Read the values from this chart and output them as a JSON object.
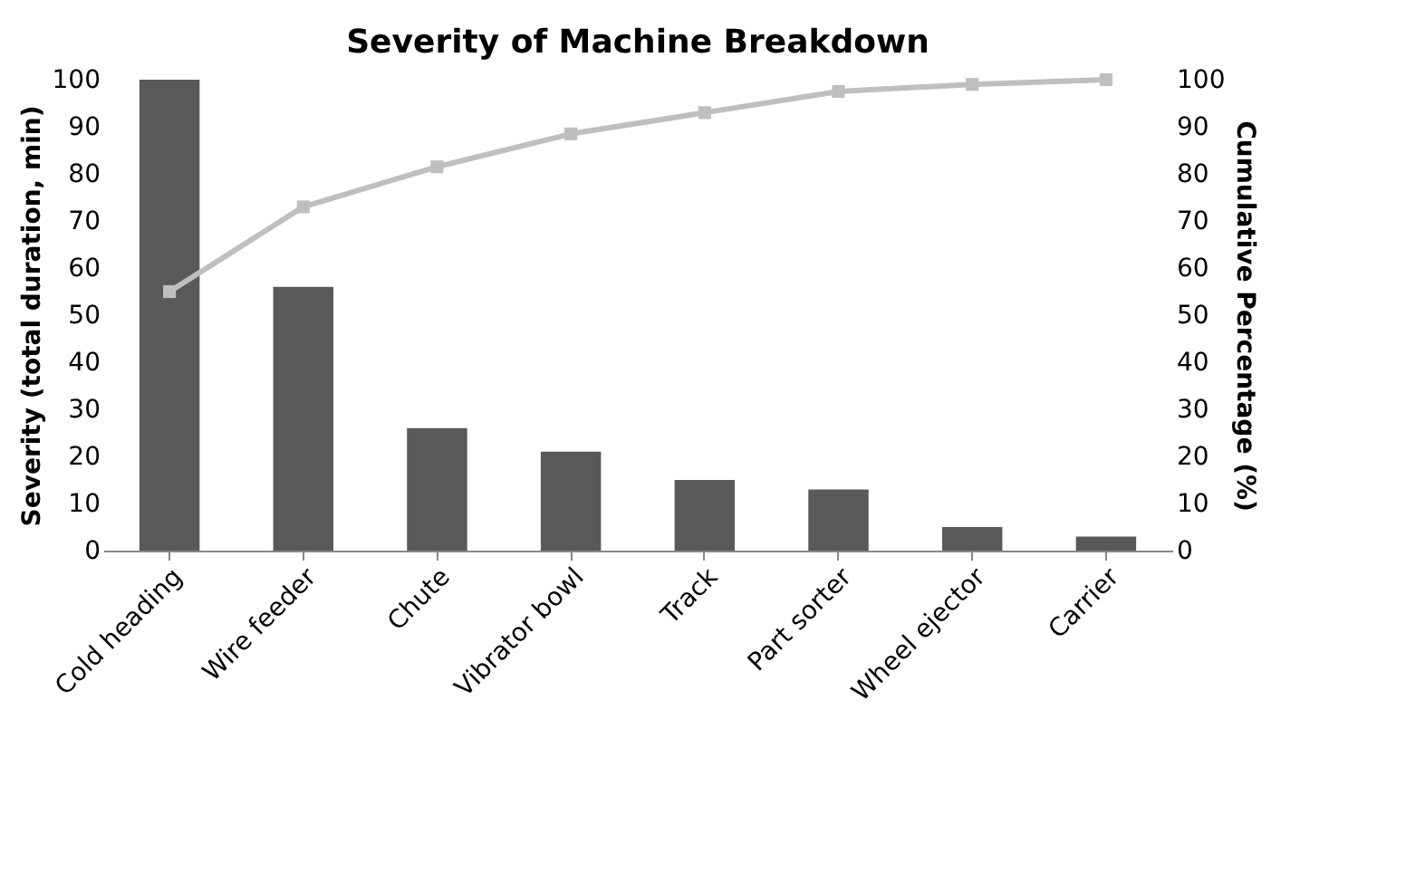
{
  "chart_data": {
    "type": "bar",
    "title": "Severity of Machine Breakdown",
    "ylabel": "Severity (total duration, min)",
    "y2label": "Cumulative Percentage (%)",
    "categories": [
      "Cold heading",
      "Wire feeder",
      "Chute",
      "Vibrator bowl",
      "Track",
      "Part sorter",
      "Wheel ejector",
      "Carrier"
    ],
    "series": [
      {
        "color": "#595959",
        "values": [
          100,
          56,
          26,
          21,
          15,
          13,
          5,
          3
        ]
      },
      {
        "type": "line",
        "axis": "y2",
        "color": "#bfbfbf",
        "marker": "square",
        "values": [
          55,
          73,
          81.5,
          88.5,
          93,
          97.5,
          99,
          100
        ]
      }
    ],
    "ylim": [
      0,
      100
    ],
    "yticks": [
      0,
      10,
      20,
      30,
      40,
      50,
      60,
      70,
      80,
      90,
      100
    ],
    "y2lim": [
      0,
      100
    ],
    "y2ticks": [
      0,
      10,
      20,
      30,
      40,
      50,
      60,
      70,
      80,
      90,
      100
    ],
    "grid": false
  }
}
